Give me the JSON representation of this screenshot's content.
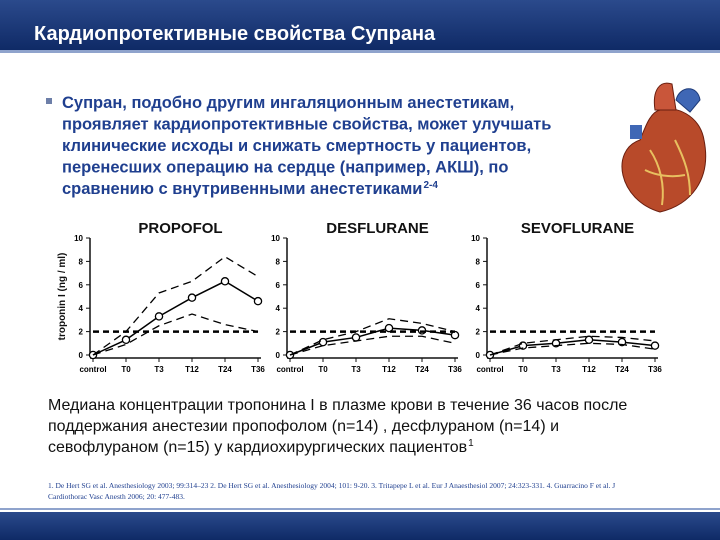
{
  "header": {
    "title": "Кардиопротективные свойства Супрана"
  },
  "bullet": {
    "lines": [
      "Супран, подобно другим ингаляционным анестетикам,",
      "проявляет кардиопротективные свойства, может улучшать",
      "клинические исходы и снижать смертность у пациентов,",
      "перенесших операцию на сердце  (например, АКШ), по",
      "сравнению с внутривенными анестетиками"
    ],
    "superscript": "2-4"
  },
  "chart_data": [
    {
      "type": "line",
      "title": "PROPOFOL",
      "ylabel": "troponin I (ng / ml)",
      "categories": [
        "control",
        "T0",
        "T3",
        "T12",
        "T24",
        "T36"
      ],
      "ylim": [
        0,
        10
      ],
      "yticks": [
        0,
        2,
        4,
        6,
        8,
        10
      ],
      "series": [
        {
          "color": "#000000",
          "style": "solid",
          "markers": true,
          "values": [
            0,
            1.3,
            3.3,
            4.9,
            6.3,
            4.6
          ]
        },
        {
          "color": "#000000",
          "style": "dashed",
          "values": [
            0,
            2.0,
            5.3,
            6.3,
            8.4,
            6.7
          ]
        },
        {
          "color": "#000000",
          "style": "dashed",
          "values": [
            0,
            0.9,
            2.5,
            3.5,
            2.6,
            2.0
          ]
        },
        {
          "color": "#000000",
          "style": "thick-dashed",
          "values": [
            2,
            2,
            2,
            2,
            2,
            2
          ]
        }
      ]
    },
    {
      "type": "line",
      "title": "DESFLURANE",
      "categories": [
        "control",
        "T0",
        "T3",
        "T12",
        "T24",
        "T36"
      ],
      "ylim": [
        0,
        10
      ],
      "yticks": [
        0,
        2,
        4,
        6,
        8,
        10
      ],
      "series": [
        {
          "color": "#000000",
          "style": "solid",
          "markers": true,
          "values": [
            0,
            1.1,
            1.5,
            2.3,
            2.1,
            1.7
          ]
        },
        {
          "color": "#000000",
          "style": "dashed",
          "values": [
            0,
            1.3,
            2.0,
            3.1,
            2.7,
            2.0
          ]
        },
        {
          "color": "#000000",
          "style": "dashed",
          "values": [
            0,
            0.8,
            1.2,
            1.6,
            1.6,
            1.0
          ]
        },
        {
          "color": "#000000",
          "style": "thick-dashed",
          "values": [
            2,
            2,
            2,
            2,
            2,
            2
          ]
        }
      ]
    },
    {
      "type": "line",
      "title": "SEVOFLURANE",
      "categories": [
        "control",
        "T0",
        "T3",
        "T12",
        "T24",
        "T36"
      ],
      "ylim": [
        0,
        10
      ],
      "yticks": [
        0,
        2,
        4,
        6,
        8,
        10
      ],
      "series": [
        {
          "color": "#000000",
          "style": "solid",
          "markers": true,
          "values": [
            0,
            0.8,
            1.0,
            1.3,
            1.1,
            0.8
          ]
        },
        {
          "color": "#000000",
          "style": "dashed",
          "values": [
            0,
            1.0,
            1.3,
            1.6,
            1.5,
            1.2
          ]
        },
        {
          "color": "#000000",
          "style": "dashed",
          "values": [
            0,
            0.6,
            0.8,
            1.0,
            0.9,
            0.5
          ]
        },
        {
          "color": "#000000",
          "style": "thick-dashed",
          "values": [
            2,
            2,
            2,
            2,
            2,
            2
          ]
        }
      ]
    }
  ],
  "caption": {
    "lines": [
      "Медиана концентрации тропонина I в плазме крови в течение 36 часов после",
      "поддержания анестезии пропофолом (n=14) , десфлураном (n=14) и",
      "севофлураном (n=15) у кардиохирургических пациентов"
    ],
    "superscript": "1"
  },
  "references": {
    "lines": [
      "1. De Hert SG et al. Anesthesiology 2003; 99:314–23  2. De Hert SG et al. Anesthesiology 2004; 101: 9-20. 3. Tritapepe L et al. Eur J Anaesthesiol 2007; 24:323-331. 4. Guarracino F et al. J",
      "Cardiothorac Vasc Anesth 2006; 20: 477-483."
    ]
  }
}
